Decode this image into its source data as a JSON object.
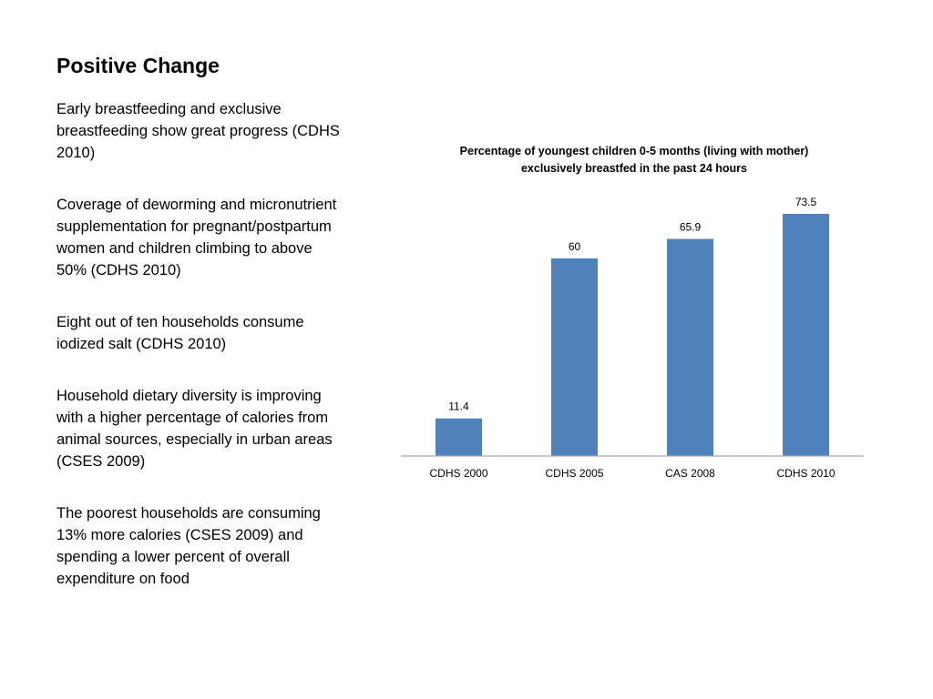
{
  "slide": {
    "title": "Positive Change",
    "bullets": [
      "Early breastfeeding and exclusive breastfeeding show great progress (CDHS 2010)",
      "Coverage of deworming and micronutrient supplementation for pregnant/postpartum women and children climbing to above 50% (CDHS 2010)",
      "Eight out of ten households consume iodized salt (CDHS 2010)",
      "Household dietary diversity is improving with a higher percentage of calories from animal sources, especially in urban areas (CSES 2009)",
      "The poorest households are consuming 13% more calories (CSES 2009) and spending a lower percent of overall expenditure on food"
    ]
  },
  "chart_data": {
    "type": "bar",
    "title_lines": [
      "Percentage of youngest children 0-5 months (living with mother)",
      "exclusively breastfed in the past 24 hours"
    ],
    "categories": [
      "CDHS 2000",
      "CDHS 2005",
      "CAS 2008",
      "CDHS 2010"
    ],
    "values": [
      11.4,
      60,
      65.9,
      73.5
    ],
    "data_labels": [
      "11.4",
      "60",
      "65.9",
      "73.5"
    ],
    "ylim": [
      0,
      73.5
    ],
    "grid": false,
    "legend": "none",
    "colors": {
      "bar": "#4f81bd",
      "axis": "#a6a6a6"
    }
  }
}
